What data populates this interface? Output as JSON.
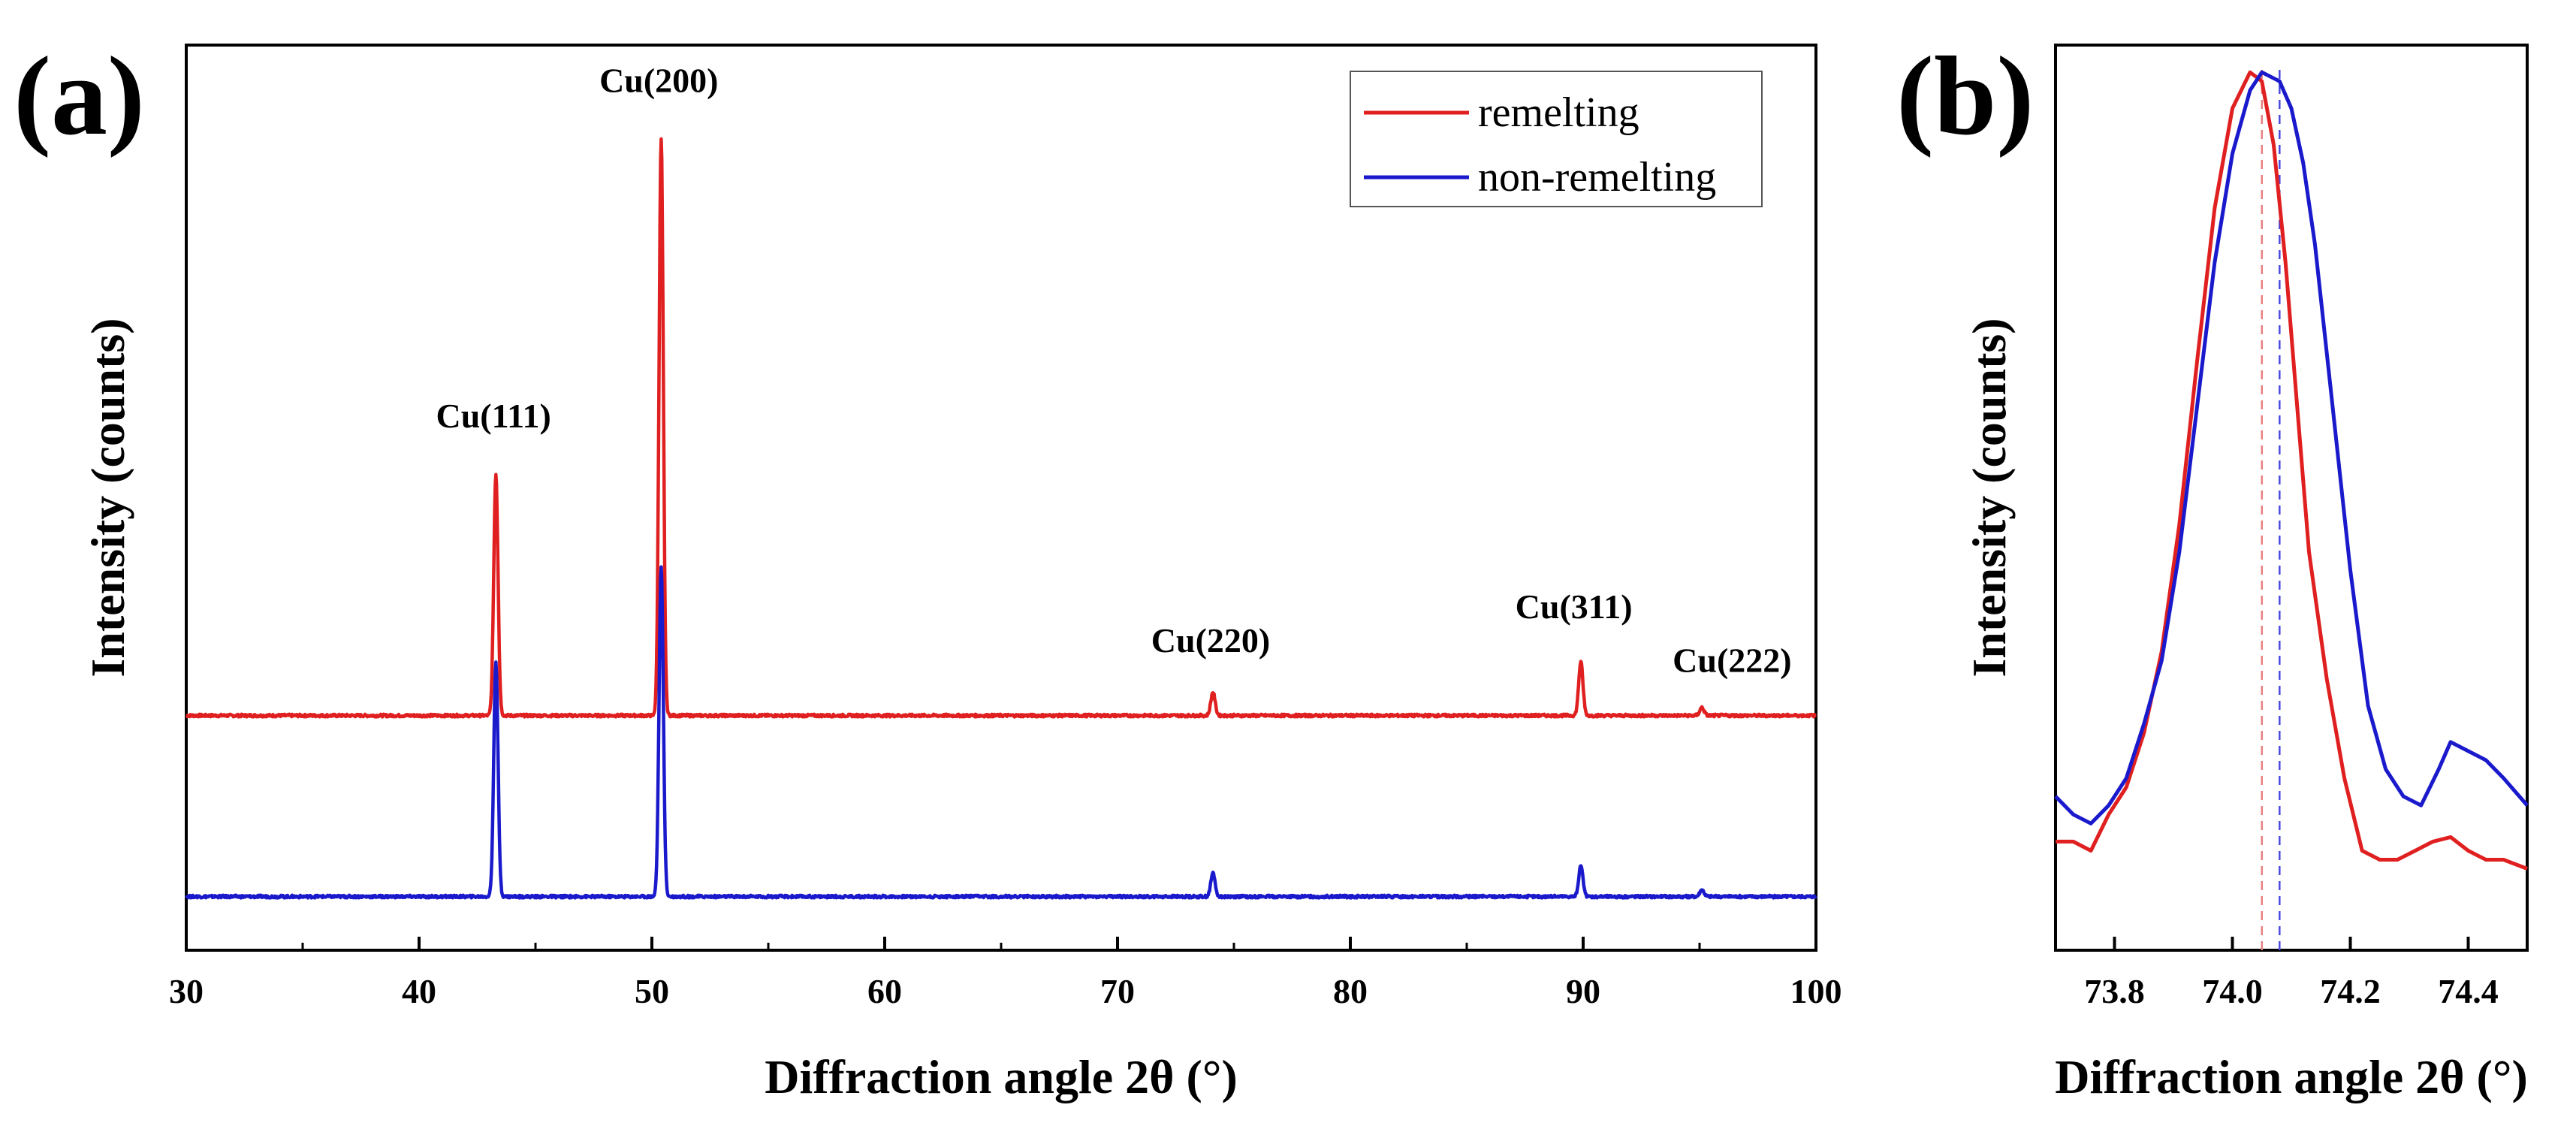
{
  "chart_data": [
    {
      "panel": "(a)",
      "type": "line",
      "xlabel": "Diffraction angle 2θ (°)",
      "ylabel": "Intensity (counts)",
      "xlim": [
        30,
        100
      ],
      "ylim": [
        -0.35,
        1.0
      ],
      "xticks": [
        30,
        40,
        50,
        60,
        70,
        80,
        90,
        100
      ],
      "minor_xticks": [
        35,
        45,
        55,
        65,
        75,
        85,
        95
      ],
      "yticks_labeled": false,
      "legend": {
        "position": "top-right",
        "entries": [
          {
            "label": "remelting",
            "color": "#e02020"
          },
          {
            "label": "non-remelting",
            "color": "#1a1acc"
          }
        ]
      },
      "baseline_offsets": {
        "remelting": 0.0,
        "non-remelting": -0.27
      },
      "peak_width": 0.13,
      "series": [
        {
          "name": "remelting",
          "color": "#e02020",
          "peaks": [
            {
              "x": 43.3,
              "height": 0.36
            },
            {
              "x": 50.4,
              "height": 0.86
            },
            {
              "x": 74.1,
              "height": 0.035
            },
            {
              "x": 89.9,
              "height": 0.08
            },
            {
              "x": 95.1,
              "height": 0.012
            }
          ]
        },
        {
          "name": "non-remelting",
          "color": "#1a1acc",
          "peaks": [
            {
              "x": 43.3,
              "height": 0.35
            },
            {
              "x": 50.4,
              "height": 0.49
            },
            {
              "x": 74.1,
              "height": 0.035
            },
            {
              "x": 89.9,
              "height": 0.045
            },
            {
              "x": 95.1,
              "height": 0.01
            }
          ]
        }
      ],
      "annotations": [
        {
          "text": "Cu(111)",
          "x": 43.2,
          "y": 0.43
        },
        {
          "text": "Cu(200)",
          "x": 50.3,
          "y": 0.93
        },
        {
          "text": "Cu(220)",
          "x": 74.0,
          "y": 0.095
        },
        {
          "text": "Cu(311)",
          "x": 89.6,
          "y": 0.145
        },
        {
          "text": "Cu(222)",
          "x": 96.4,
          "y": 0.065
        }
      ]
    },
    {
      "panel": "(b)",
      "type": "line",
      "xlabel": "Diffraction angle 2θ (°)",
      "ylabel": "Intensity (counts)",
      "xlim": [
        73.7,
        74.5
      ],
      "ylim": [
        0,
        1.0
      ],
      "xticks": [
        73.8,
        74.0,
        74.2,
        74.4
      ],
      "xtick_labels": [
        "73.8",
        "74.0",
        "74.2",
        "74.4"
      ],
      "yticks_labeled": false,
      "series": [
        {
          "name": "remelting",
          "color": "#e02020",
          "x": [
            73.7,
            73.73,
            73.76,
            73.79,
            73.82,
            73.85,
            73.88,
            73.91,
            73.94,
            73.97,
            74.0,
            74.03,
            74.05,
            74.07,
            74.09,
            74.11,
            74.13,
            74.16,
            74.19,
            74.22,
            74.25,
            74.28,
            74.31,
            74.34,
            74.37,
            74.4,
            74.43,
            74.46,
            74.5
          ],
          "y": [
            0.12,
            0.12,
            0.11,
            0.15,
            0.18,
            0.24,
            0.33,
            0.47,
            0.65,
            0.82,
            0.93,
            0.97,
            0.96,
            0.89,
            0.76,
            0.6,
            0.44,
            0.3,
            0.19,
            0.11,
            0.1,
            0.1,
            0.11,
            0.12,
            0.125,
            0.11,
            0.1,
            0.1,
            0.09
          ]
        },
        {
          "name": "non-remelting",
          "color": "#1a1acc",
          "x": [
            73.7,
            73.73,
            73.76,
            73.79,
            73.82,
            73.85,
            73.88,
            73.91,
            73.94,
            73.97,
            74.0,
            74.03,
            74.05,
            74.08,
            74.1,
            74.12,
            74.14,
            74.17,
            74.2,
            74.23,
            74.26,
            74.29,
            74.32,
            74.35,
            74.37,
            74.4,
            74.43,
            74.46,
            74.5
          ],
          "y": [
            0.17,
            0.15,
            0.14,
            0.16,
            0.19,
            0.25,
            0.32,
            0.44,
            0.6,
            0.76,
            0.88,
            0.95,
            0.97,
            0.96,
            0.93,
            0.87,
            0.78,
            0.6,
            0.42,
            0.27,
            0.2,
            0.17,
            0.16,
            0.2,
            0.23,
            0.22,
            0.21,
            0.19,
            0.16
          ]
        }
      ],
      "reference_lines": [
        {
          "series": "remelting",
          "x": 74.05,
          "color": "#e88080",
          "style": "dashed"
        },
        {
          "series": "non-remelting",
          "x": 74.08,
          "color": "#4a4ae0",
          "style": "dashed"
        }
      ]
    }
  ]
}
